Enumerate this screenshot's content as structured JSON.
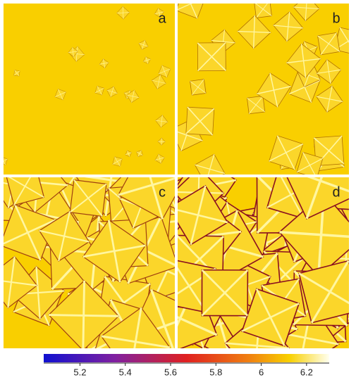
{
  "panels": [
    {
      "label": "a"
    },
    {
      "label": "b"
    },
    {
      "label": "c"
    },
    {
      "label": "d"
    }
  ],
  "colorbar": {
    "range": [
      5.04,
      6.3
    ],
    "ticks": [
      5.2,
      5.4,
      5.6,
      5.8,
      6,
      6.2
    ]
  }
}
